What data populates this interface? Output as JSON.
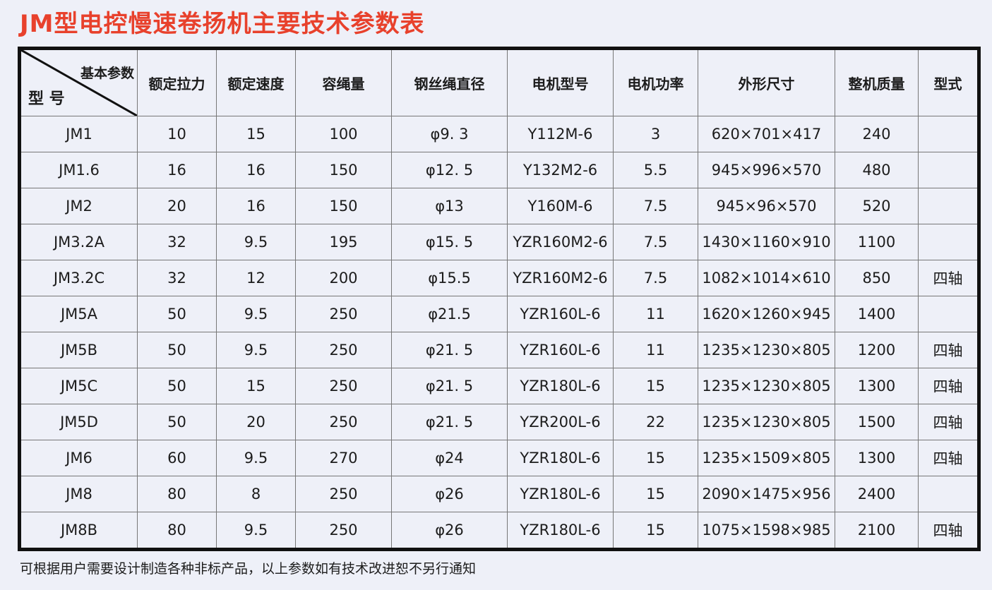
{
  "title": "JM型电控慢速卷扬机主要技术参数表",
  "table": {
    "corner_top": "基本参数",
    "corner_bottom": "型 号",
    "headers": [
      "额定拉力",
      "额定速度",
      "容绳量",
      "钢丝绳直径",
      "电机型号",
      "电机功率",
      "外形尺寸",
      "整机质量",
      "型式"
    ],
    "rows": [
      [
        "JM1",
        "10",
        "15",
        "100",
        "φ9. 3",
        "Y112M-6",
        "3",
        "620×701×417",
        "240",
        ""
      ],
      [
        "JM1.6",
        "16",
        "16",
        "150",
        "φ12. 5",
        "Y132M2-6",
        "5.5",
        "945×996×570",
        "480",
        ""
      ],
      [
        "JM2",
        "20",
        "16",
        "150",
        "φ13",
        "Y160M-6",
        "7.5",
        "945×96×570",
        "520",
        ""
      ],
      [
        "JM3.2A",
        "32",
        "9.5",
        "195",
        "φ15. 5",
        "YZR160M2-6",
        "7.5",
        "1430×1160×910",
        "1100",
        ""
      ],
      [
        "JM3.2C",
        "32",
        "12",
        "200",
        "φ15.5",
        "YZR160M2-6",
        "7.5",
        "1082×1014×610",
        "850",
        "四轴"
      ],
      [
        "JM5A",
        "50",
        "9.5",
        "250",
        "φ21.5",
        "YZR160L-6",
        "11",
        "1620×1260×945",
        "1400",
        ""
      ],
      [
        "JM5B",
        "50",
        "9.5",
        "250",
        "φ21. 5",
        "YZR160L-6",
        "11",
        "1235×1230×805",
        "1200",
        "四轴"
      ],
      [
        "JM5C",
        "50",
        "15",
        "250",
        "φ21. 5",
        "YZR180L-6",
        "15",
        "1235×1230×805",
        "1300",
        "四轴"
      ],
      [
        "JM5D",
        "50",
        "20",
        "250",
        "φ21. 5",
        "YZR200L-6",
        "22",
        "1235×1230×805",
        "1500",
        "四轴"
      ],
      [
        "JM6",
        "60",
        "9.5",
        "270",
        "φ24",
        "YZR180L-6",
        "15",
        "1235×1509×805",
        "1300",
        "四轴"
      ],
      [
        "JM8",
        "80",
        "8",
        "250",
        "φ26",
        "YZR180L-6",
        "15",
        "2090×1475×956",
        "2400",
        ""
      ],
      [
        "JM8B",
        "80",
        "9.5",
        "250",
        "φ26",
        "YZR180L-6",
        "15",
        "1075×1598×985",
        "2100",
        "四轴"
      ]
    ]
  },
  "footer": "可根据用户需要设计制造各种非标产品，以上参数如有技术改进恕不另行通知"
}
